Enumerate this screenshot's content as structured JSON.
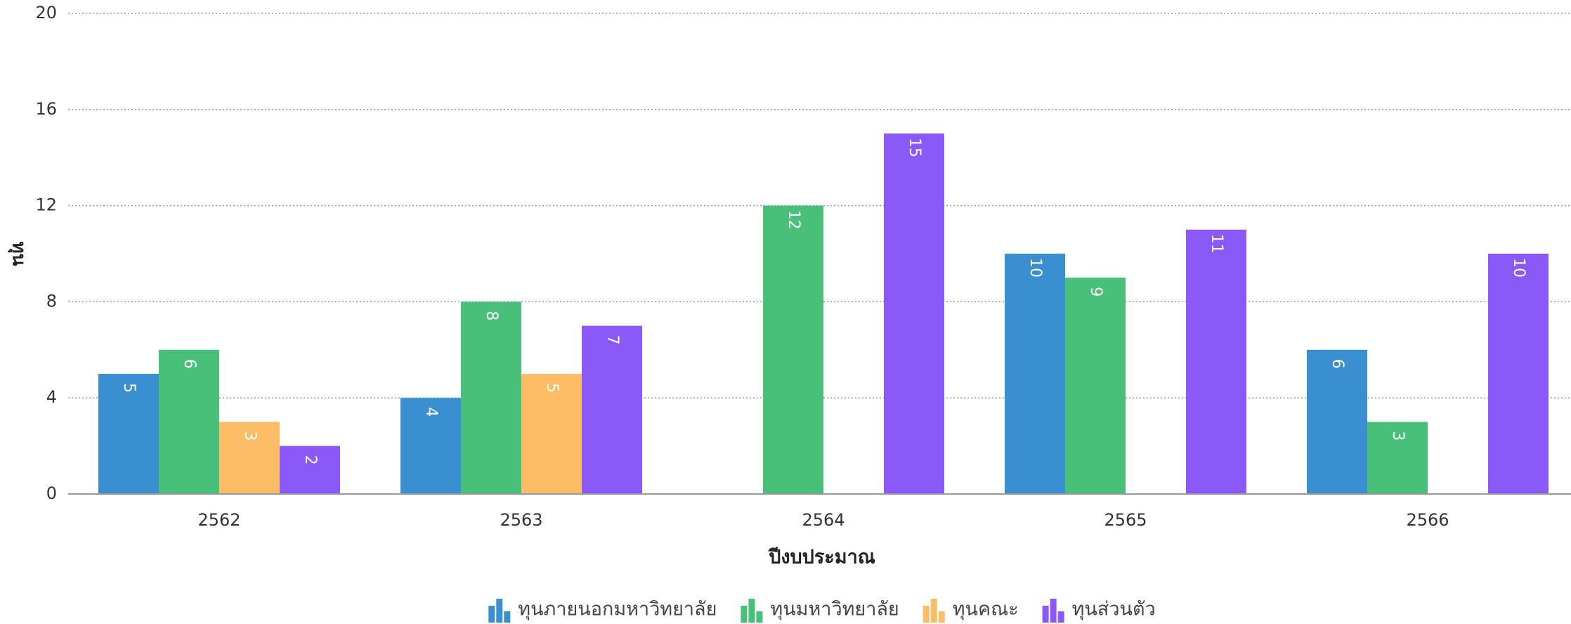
{
  "chart_data": {
    "type": "bar",
    "categories": [
      "2562",
      "2563",
      "2564",
      "2565",
      "2566"
    ],
    "series": [
      {
        "name": "ทุนภายนอกมหาวิทยาลัย",
        "color": "#3a8fd0",
        "values": [
          5,
          4,
          null,
          10,
          6
        ]
      },
      {
        "name": "ทุนมหาวิทยาลัย",
        "color": "#49c07a",
        "values": [
          6,
          8,
          12,
          9,
          3
        ]
      },
      {
        "name": "ทุนคณะ",
        "color": "#fdbd66",
        "values": [
          3,
          5,
          null,
          null,
          null
        ]
      },
      {
        "name": "ทุนส่วนตัว",
        "color": "#8b59f8",
        "values": [
          2,
          7,
          15,
          11,
          10
        ]
      }
    ],
    "xlabel": "ปีงบประมาณ",
    "ylabel": "ทุน",
    "ylim": [
      0,
      20
    ],
    "yticks": [
      0,
      4,
      8,
      12,
      16,
      20
    ],
    "grid": true,
    "legend": "bottom"
  }
}
